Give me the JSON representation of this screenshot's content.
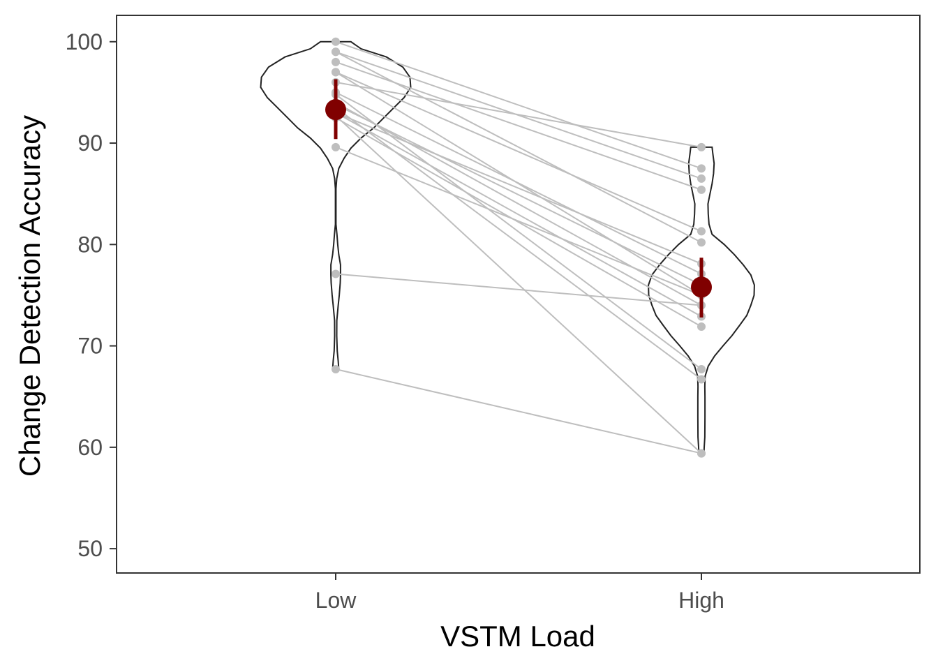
{
  "chart_data": {
    "type": "violin",
    "xlabel": "VSTM Load",
    "ylabel": "Change Detection Accuracy",
    "categories": [
      "Low",
      "High"
    ],
    "ylim": [
      47.6,
      102.6
    ],
    "y_ticks": [
      50,
      60,
      70,
      80,
      90,
      100
    ],
    "grid": false,
    "paired_observations": [
      [
        100.0,
        87.5
      ],
      [
        99.0,
        86.5
      ],
      [
        99.0,
        80.2
      ],
      [
        98.0,
        85.4
      ],
      [
        97.0,
        81.3
      ],
      [
        97.0,
        75.0
      ],
      [
        96.0,
        89.6
      ],
      [
        95.0,
        77.1
      ],
      [
        94.8,
        67.7
      ],
      [
        94.0,
        74.0
      ],
      [
        93.8,
        76.0
      ],
      [
        93.5,
        66.7
      ],
      [
        93.0,
        78.1
      ],
      [
        93.0,
        72.9
      ],
      [
        92.7,
        59.4
      ],
      [
        92.5,
        71.9
      ],
      [
        89.6,
        75.0
      ],
      [
        77.1,
        74.0
      ],
      [
        67.7,
        59.4
      ]
    ],
    "summary": [
      {
        "category": "Low",
        "mean": 93.3,
        "ci_low": 90.4,
        "ci_high": 96.3
      },
      {
        "category": "High",
        "mean": 75.8,
        "ci_low": 72.8,
        "ci_high": 78.7
      }
    ],
    "violin_half_width": {
      "Low": [
        [
          67.7,
          1.2
        ],
        [
          68.5,
          1.0
        ],
        [
          69.5,
          0.6
        ],
        [
          71,
          0.4
        ],
        [
          72.5,
          0.45
        ],
        [
          74,
          1.0
        ],
        [
          75,
          1.4
        ],
        [
          76.2,
          1.8
        ],
        [
          77,
          1.9
        ],
        [
          78,
          1.9
        ],
        [
          79,
          1.2
        ],
        [
          80,
          0.8
        ],
        [
          81,
          0.5
        ],
        [
          82,
          0.1
        ],
        [
          84,
          0.1
        ],
        [
          85.5,
          0.1
        ],
        [
          86.5,
          0.4
        ],
        [
          87.5,
          1.2
        ],
        [
          88.5,
          3.3
        ],
        [
          89.5,
          6.0
        ],
        [
          90.5,
          10.0
        ],
        [
          91.5,
          15.0
        ],
        [
          92.5,
          19.0
        ],
        [
          93.5,
          23.0
        ],
        [
          94.5,
          27.0
        ],
        [
          95.5,
          29.6
        ],
        [
          96.5,
          29.3
        ],
        [
          97.5,
          26.5
        ],
        [
          98.5,
          20.0
        ],
        [
          99.3,
          10.0
        ],
        [
          100,
          6.0
        ]
      ],
      "High": [
        [
          59.4,
          1.0
        ],
        [
          60,
          1.1
        ],
        [
          61,
          1.35
        ],
        [
          63,
          1.4
        ],
        [
          65,
          1.4
        ],
        [
          66,
          1.35
        ],
        [
          67,
          1.45
        ],
        [
          68,
          2.7
        ],
        [
          69,
          5.2
        ],
        [
          70,
          8.5
        ],
        [
          71,
          12.0
        ],
        [
          72,
          15.0
        ],
        [
          73,
          17.9
        ],
        [
          74,
          19.5
        ],
        [
          75,
          20.8
        ],
        [
          76,
          20.9
        ],
        [
          77,
          19.5
        ],
        [
          78,
          16.5
        ],
        [
          79,
          13.0
        ],
        [
          80,
          9.0
        ],
        [
          81,
          4.2
        ],
        [
          82,
          3.0
        ],
        [
          83,
          2.7
        ],
        [
          84,
          2.6
        ],
        [
          85,
          3.4
        ],
        [
          86,
          4.2
        ],
        [
          87,
          4.8
        ],
        [
          88,
          5.0
        ],
        [
          89,
          4.5
        ],
        [
          89.6,
          4.2
        ]
      ]
    },
    "colors": {
      "paired_line": "#bebebe",
      "point": "#bebebe",
      "summary": "#800000",
      "violin_outline": "#222222",
      "panel_border": "#333333",
      "tick_label": "#4d4d4d"
    }
  }
}
